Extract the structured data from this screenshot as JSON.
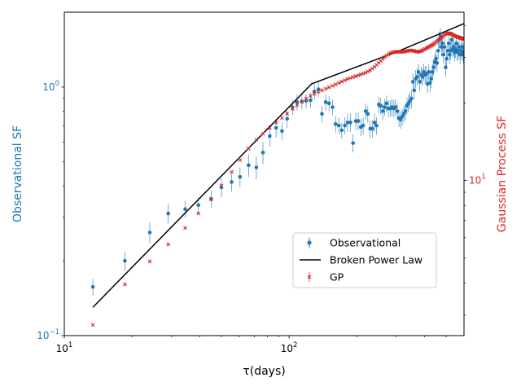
{
  "chart_data": {
    "type": "scatter",
    "x_scale": "log",
    "y_scale": "log",
    "y2_scale": "log",
    "xlim": [
      10,
      600
    ],
    "ylim": [
      0.1,
      2.0
    ],
    "y2lim": [
      2.5,
      45
    ],
    "xlabel": "τ(days)",
    "ylabel": "Observational SF",
    "y2label": "Gaussian Process SF",
    "x_ticks": [
      {
        "value": 10,
        "base": "10",
        "exp": "1"
      },
      {
        "value": 100,
        "base": "10",
        "exp": "2"
      }
    ],
    "y_ticks": [
      {
        "value": 0.1,
        "base": "10",
        "exp": "−1"
      },
      {
        "value": 1,
        "base": "10",
        "exp": "0"
      }
    ],
    "y2_ticks": [
      {
        "value": 10,
        "base": "10",
        "exp": "1"
      }
    ],
    "colors": {
      "observational": "#1f77b4",
      "broken_power_law": "#000000",
      "gp": "#d62728",
      "ylabel": "#1f77b4",
      "y2label": "#d62728"
    },
    "legend": {
      "position": "lower-right",
      "entries": [
        "Observational",
        "Broken Power Law",
        "GP"
      ]
    },
    "series": [
      {
        "name": "Observational",
        "axis": "left",
        "marker": "circle",
        "points": [
          [
            13.4,
            0.157,
            0.012
          ],
          [
            18.6,
            0.2,
            0.018
          ],
          [
            24.0,
            0.26,
            0.025
          ],
          [
            29.0,
            0.31,
            0.028
          ],
          [
            34.5,
            0.323,
            0.025
          ],
          [
            39.5,
            0.335,
            0.025
          ],
          [
            45.0,
            0.355,
            0.028
          ],
          [
            50.0,
            0.395,
            0.035
          ],
          [
            55.5,
            0.415,
            0.035
          ],
          [
            60.5,
            0.435,
            0.04
          ],
          [
            66.0,
            0.485,
            0.05
          ],
          [
            71.5,
            0.475,
            0.05
          ],
          [
            76.5,
            0.545,
            0.055
          ],
          [
            82.0,
            0.635,
            0.06
          ],
          [
            87.5,
            0.685,
            0.06
          ],
          [
            93.0,
            0.665,
            0.055
          ],
          [
            98.0,
            0.745,
            0.06
          ],
          [
            103.5,
            0.83,
            0.06
          ],
          [
            108.5,
            0.87,
            0.065
          ],
          [
            114.0,
            0.875,
            0.06
          ],
          [
            119.0,
            0.88,
            0.06
          ],
          [
            124.5,
            0.885,
            0.06
          ],
          [
            129.5,
            0.96,
            0.07
          ],
          [
            135.0,
            0.98,
            0.07
          ],
          [
            140.0,
            0.78,
            0.06
          ],
          [
            145.5,
            0.87,
            0.065
          ],
          [
            150.5,
            0.86,
            0.06
          ],
          [
            156.0,
            0.83,
            0.06
          ],
          [
            161.0,
            0.71,
            0.055
          ],
          [
            166.5,
            0.7,
            0.055
          ],
          [
            171.5,
            0.67,
            0.05
          ],
          [
            177.0,
            0.7,
            0.055
          ],
          [
            182.0,
            0.72,
            0.06
          ],
          [
            187.5,
            0.72,
            0.06
          ],
          [
            192.5,
            0.595,
            0.05
          ],
          [
            198.0,
            0.73,
            0.06
          ],
          [
            203.0,
            0.73,
            0.06
          ],
          [
            208.5,
            0.69,
            0.055
          ],
          [
            213.5,
            0.7,
            0.055
          ],
          [
            219.0,
            0.8,
            0.06
          ],
          [
            224.0,
            0.78,
            0.06
          ],
          [
            229.5,
            0.68,
            0.055
          ],
          [
            234.5,
            0.68,
            0.055
          ],
          [
            240.0,
            0.72,
            0.06
          ],
          [
            245.0,
            0.7,
            0.055
          ],
          [
            250.5,
            0.85,
            0.065
          ],
          [
            255.5,
            0.84,
            0.065
          ],
          [
            261.0,
            0.8,
            0.06
          ],
          [
            266.0,
            0.83,
            0.065
          ],
          [
            271.5,
            0.86,
            0.065
          ],
          [
            276.5,
            0.82,
            0.065
          ],
          [
            282.0,
            0.82,
            0.065
          ],
          [
            287.0,
            0.83,
            0.065
          ],
          [
            292.5,
            0.82,
            0.065
          ],
          [
            297.5,
            0.83,
            0.065
          ],
          [
            303.0,
            0.8,
            0.06
          ],
          [
            308.0,
            0.75,
            0.06
          ],
          [
            313.5,
            0.74,
            0.06
          ],
          [
            318.5,
            0.76,
            0.06
          ],
          [
            324.0,
            0.78,
            0.06
          ],
          [
            329.0,
            0.8,
            0.065
          ],
          [
            334.5,
            0.84,
            0.065
          ],
          [
            339.5,
            0.86,
            0.07
          ],
          [
            345.0,
            0.88,
            0.07
          ],
          [
            350.0,
            0.9,
            0.075
          ],
          [
            355.5,
            1.05,
            0.08
          ],
          [
            360.5,
            0.97,
            0.08
          ],
          [
            366.0,
            1.08,
            0.09
          ],
          [
            371.0,
            1.1,
            0.09
          ],
          [
            376.5,
            1.15,
            0.09
          ],
          [
            381.5,
            1.05,
            0.085
          ],
          [
            387.0,
            1.12,
            0.09
          ],
          [
            392.0,
            1.1,
            0.09
          ],
          [
            397.5,
            1.15,
            0.09
          ],
          [
            402.5,
            1.12,
            0.09
          ],
          [
            408.0,
            1.13,
            0.09
          ],
          [
            413.0,
            1.03,
            0.085
          ],
          [
            418.5,
            1.15,
            0.09
          ],
          [
            423.5,
            1.04,
            0.085
          ],
          [
            429.0,
            1.08,
            0.09
          ],
          [
            434.0,
            1.15,
            0.09
          ],
          [
            439.5,
            1.2,
            0.095
          ],
          [
            444.5,
            1.26,
            0.1
          ],
          [
            450.0,
            1.3,
            0.1
          ],
          [
            455.0,
            1.25,
            0.1
          ],
          [
            460.5,
            1.4,
            0.11
          ],
          [
            465.5,
            1.55,
            0.12
          ],
          [
            471.0,
            1.6,
            0.13
          ],
          [
            476.0,
            1.45,
            0.12
          ],
          [
            481.5,
            1.5,
            0.12
          ],
          [
            486.5,
            1.35,
            0.11
          ],
          [
            492.0,
            1.45,
            0.12
          ],
          [
            497.0,
            1.2,
            0.1
          ],
          [
            502.5,
            1.3,
            0.11
          ],
          [
            507.5,
            1.4,
            0.11
          ],
          [
            513.0,
            1.5,
            0.12
          ],
          [
            518.0,
            1.35,
            0.11
          ],
          [
            523.5,
            1.4,
            0.11
          ],
          [
            528.5,
            1.55,
            0.12
          ],
          [
            534.0,
            1.42,
            0.11
          ],
          [
            539.0,
            1.45,
            0.12
          ],
          [
            544.5,
            1.38,
            0.11
          ],
          [
            549.5,
            1.42,
            0.11
          ],
          [
            555.0,
            1.5,
            0.12
          ],
          [
            560.0,
            1.38,
            0.11
          ],
          [
            565.5,
            1.4,
            0.11
          ],
          [
            570.5,
            1.45,
            0.12
          ],
          [
            576.0,
            1.35,
            0.11
          ],
          [
            581.0,
            1.4,
            0.11
          ],
          [
            586.5,
            1.45,
            0.12
          ],
          [
            591.5,
            1.38,
            0.11
          ],
          [
            597.0,
            1.35,
            0.11
          ]
        ]
      },
      {
        "name": "Broken Power Law",
        "axis": "left",
        "style": "line",
        "points": [
          [
            13.4,
            0.13
          ],
          [
            126,
            1.03
          ],
          [
            310,
            1.4
          ],
          [
            600,
            1.8
          ]
        ]
      },
      {
        "name": "GP",
        "axis": "right",
        "marker": "x",
        "points": [
          [
            13.4,
            2.75
          ],
          [
            18.6,
            3.95
          ],
          [
            24.0,
            4.85
          ],
          [
            29.0,
            5.65
          ],
          [
            34.5,
            6.55
          ],
          [
            39.5,
            7.45
          ],
          [
            45.0,
            8.45
          ],
          [
            50.0,
            9.55
          ],
          [
            55.5,
            10.8
          ],
          [
            60.5,
            12.0
          ],
          [
            66.0,
            13.3
          ],
          [
            71.5,
            14.4
          ],
          [
            76.5,
            15.2
          ],
          [
            82.0,
            16.0
          ],
          [
            87.5,
            16.8
          ],
          [
            93.0,
            17.5
          ],
          [
            98.0,
            18.2
          ],
          [
            103.5,
            19.0
          ],
          [
            108.5,
            19.6
          ],
          [
            114.0,
            20.2
          ],
          [
            119.0,
            20.8
          ],
          [
            124.5,
            21.3
          ],
          [
            129.5,
            21.7
          ],
          [
            135.0,
            22.1
          ],
          [
            140.0,
            22.4
          ],
          [
            145.5,
            22.7
          ],
          [
            150.5,
            23.0
          ],
          [
            156.0,
            23.3
          ],
          [
            161.0,
            23.6
          ],
          [
            166.5,
            23.9
          ],
          [
            171.5,
            24.2
          ],
          [
            177.0,
            24.5
          ],
          [
            182.0,
            24.8
          ],
          [
            187.5,
            25.0
          ],
          [
            192.5,
            25.2
          ],
          [
            198.0,
            25.4
          ],
          [
            203.0,
            25.6
          ],
          [
            208.5,
            25.8
          ],
          [
            213.5,
            26.0
          ],
          [
            219.0,
            26.2
          ],
          [
            224.0,
            26.5
          ],
          [
            229.5,
            26.8
          ],
          [
            234.5,
            27.2
          ],
          [
            240.0,
            27.6
          ],
          [
            245.0,
            28.1
          ],
          [
            250.5,
            28.6
          ],
          [
            255.5,
            29.1
          ],
          [
            261.0,
            29.6
          ],
          [
            266.0,
            30.1
          ],
          [
            271.5,
            30.5
          ],
          [
            276.5,
            30.9
          ],
          [
            282.0,
            31.2
          ],
          [
            287.0,
            31.4
          ],
          [
            292.5,
            31.5
          ],
          [
            297.5,
            31.6
          ],
          [
            303.0,
            31.6
          ],
          [
            308.0,
            31.6
          ],
          [
            313.5,
            31.6
          ],
          [
            318.5,
            31.6
          ],
          [
            324.0,
            31.6
          ],
          [
            329.0,
            31.7
          ],
          [
            334.5,
            31.8
          ],
          [
            339.5,
            31.9
          ],
          [
            345.0,
            32.0
          ],
          [
            350.0,
            32.0
          ],
          [
            355.5,
            31.9
          ],
          [
            360.5,
            31.8
          ],
          [
            366.0,
            31.7
          ],
          [
            371.0,
            31.6
          ],
          [
            376.5,
            31.6
          ],
          [
            381.5,
            31.7
          ],
          [
            387.0,
            31.8
          ],
          [
            392.0,
            32.0
          ],
          [
            397.5,
            32.2
          ],
          [
            402.5,
            32.4
          ],
          [
            408.0,
            32.6
          ],
          [
            413.0,
            32.8
          ],
          [
            418.5,
            33.0
          ],
          [
            423.5,
            33.2
          ],
          [
            429.0,
            33.4
          ],
          [
            434.0,
            33.6
          ],
          [
            439.5,
            33.8
          ],
          [
            444.5,
            34.1
          ],
          [
            450.0,
            34.4
          ],
          [
            455.0,
            34.7
          ],
          [
            460.5,
            35.0
          ],
          [
            465.5,
            35.3
          ],
          [
            471.0,
            35.6
          ],
          [
            476.0,
            35.9
          ],
          [
            481.5,
            36.2
          ],
          [
            486.5,
            36.5
          ],
          [
            492.0,
            36.8
          ],
          [
            497.0,
            37.0
          ],
          [
            502.5,
            37.2
          ],
          [
            507.5,
            37.3
          ],
          [
            513.0,
            37.3
          ],
          [
            518.0,
            37.2
          ],
          [
            523.5,
            37.1
          ],
          [
            528.5,
            37.0
          ],
          [
            534.0,
            36.8
          ],
          [
            539.0,
            36.6
          ],
          [
            544.5,
            36.5
          ],
          [
            549.5,
            36.3
          ],
          [
            555.0,
            36.2
          ],
          [
            560.0,
            36.1
          ],
          [
            565.5,
            36.0
          ],
          [
            570.5,
            35.9
          ],
          [
            576.0,
            35.8
          ],
          [
            581.0,
            35.7
          ],
          [
            586.5,
            35.6
          ],
          [
            591.5,
            35.5
          ],
          [
            597.0,
            35.4
          ]
        ]
      }
    ]
  }
}
